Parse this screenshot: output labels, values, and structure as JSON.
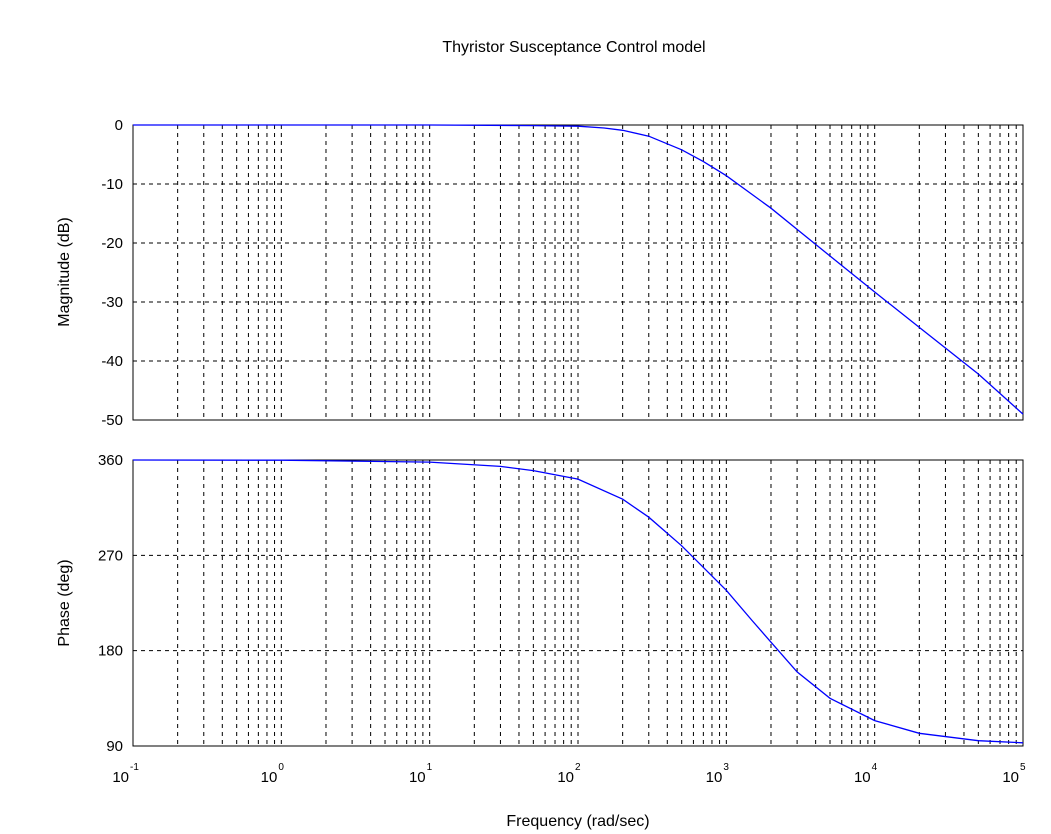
{
  "chart_data": {
    "type": "line",
    "title": "Thyristor Susceptance Control model",
    "xlabel": "Frequency  (rad/sec)",
    "x_scale": "log",
    "xlim": [
      0.1,
      100000
    ],
    "x_tick_labels": [
      {
        "base": "10",
        "exp": "-1"
      },
      {
        "base": "10",
        "exp": "0"
      },
      {
        "base": "10",
        "exp": "1"
      },
      {
        "base": "10",
        "exp": "2"
      },
      {
        "base": "10",
        "exp": "3"
      },
      {
        "base": "10",
        "exp": "4"
      },
      {
        "base": "10",
        "exp": "5"
      }
    ],
    "grid": true,
    "line_color": "#0000ff",
    "panels": [
      {
        "name": "magnitude",
        "ylabel": "Magnitude (dB)",
        "ylim": [
          -50,
          0
        ],
        "y_tick_labels": [
          "0",
          "-10",
          "-20",
          "-30",
          "-40",
          "-50"
        ],
        "series": [
          {
            "x": [
              0.1,
              1,
              10,
              50,
              100,
              150,
              200,
              300,
              500,
              700,
              1000,
              2000,
              3000,
              5000,
              10000,
              20000,
              50000,
              100000
            ],
            "y": [
              0,
              0,
              0,
              -0.1,
              -0.2,
              -0.5,
              -0.9,
              -1.9,
              -4.2,
              -6.2,
              -8.6,
              -14.1,
              -17.7,
              -22.2,
              -28.3,
              -34.3,
              -42.2,
              -49
            ]
          }
        ]
      },
      {
        "name": "phase",
        "ylabel": "Phase (deg)",
        "ylim": [
          90,
          360
        ],
        "y_tick_labels": [
          "360",
          "270",
          "180",
          "90"
        ],
        "series": [
          {
            "x": [
              0.1,
              1,
              10,
              30,
              50,
              100,
              200,
              300,
              500,
              1000,
              1500,
              2000,
              3000,
              5000,
              10000,
              20000,
              50000,
              100000
            ],
            "y": [
              360,
              359.8,
              358,
              354,
              350,
              342,
              323,
              306,
              279,
              237,
              208,
              188,
              160,
              135,
              114,
              102,
              95,
              93
            ]
          }
        ]
      }
    ]
  }
}
